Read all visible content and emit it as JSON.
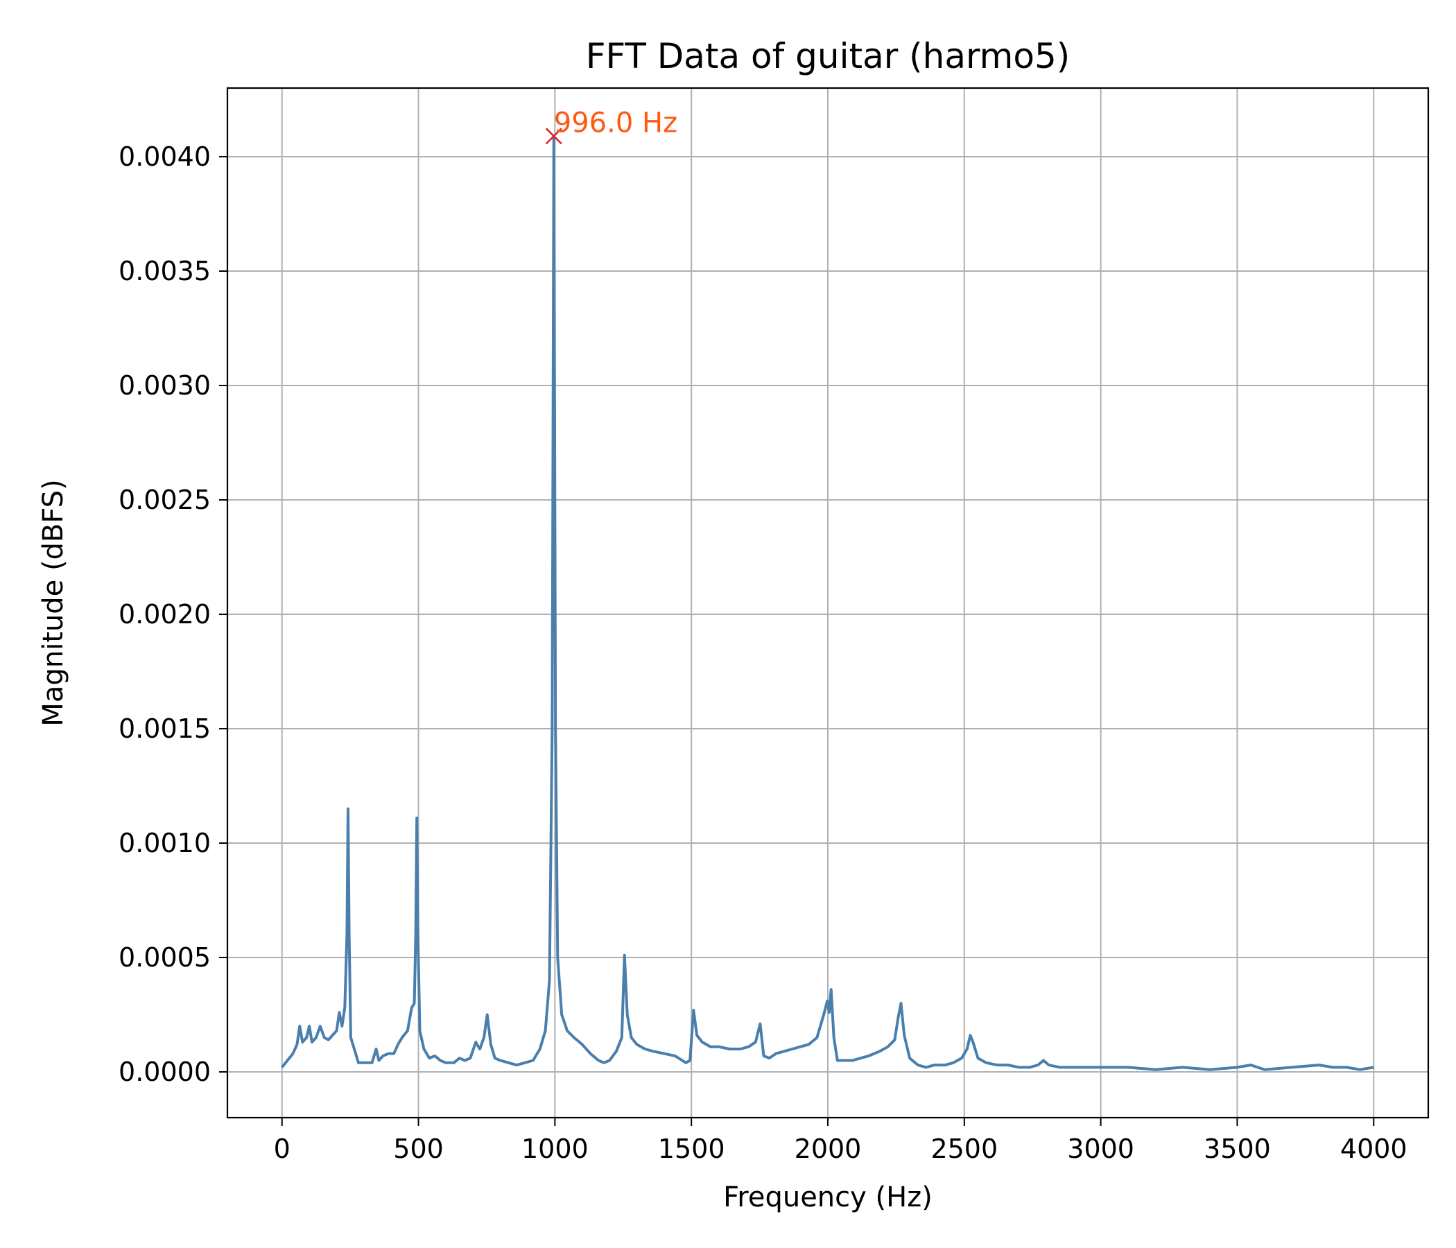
{
  "chart_data": {
    "type": "line",
    "title": "FFT Data of guitar (harmo5)",
    "xlabel": "Frequency (Hz)",
    "ylabel": "Magnitude (dBFS)",
    "xlim": [
      -200,
      4200
    ],
    "ylim": [
      -0.0002,
      0.0043
    ],
    "x_ticks": [
      0,
      500,
      1000,
      1500,
      2000,
      2500,
      3000,
      3500,
      4000
    ],
    "x_tick_labels": [
      "0",
      "500",
      "1000",
      "1500",
      "2000",
      "2500",
      "3000",
      "3500",
      "4000"
    ],
    "y_ticks": [
      0,
      0.0005,
      0.001,
      0.0015,
      0.002,
      0.0025,
      0.003,
      0.0035,
      0.004
    ],
    "y_tick_labels": [
      "0.0000",
      "0.0005",
      "0.0010",
      "0.0015",
      "0.0020",
      "0.0025",
      "0.0030",
      "0.0035",
      "0.0040"
    ],
    "grid": true,
    "line_color": "#4a7fad",
    "series": [
      {
        "points": [
          [
            0,
            2e-05
          ],
          [
            20,
            5e-05
          ],
          [
            40,
            8e-05
          ],
          [
            55,
            0.00012
          ],
          [
            65,
            0.0002
          ],
          [
            75,
            0.00013
          ],
          [
            90,
            0.00015
          ],
          [
            100,
            0.0002
          ],
          [
            110,
            0.00013
          ],
          [
            125,
            0.00015
          ],
          [
            140,
            0.0002
          ],
          [
            155,
            0.00015
          ],
          [
            170,
            0.00014
          ],
          [
            185,
            0.00016
          ],
          [
            200,
            0.00018
          ],
          [
            210,
            0.00026
          ],
          [
            220,
            0.0002
          ],
          [
            230,
            0.00028
          ],
          [
            238,
            0.0006
          ],
          [
            242,
            0.00115
          ],
          [
            246,
            0.0006
          ],
          [
            252,
            0.00015
          ],
          [
            265,
            0.0001
          ],
          [
            280,
            4e-05
          ],
          [
            300,
            4e-05
          ],
          [
            330,
            4e-05
          ],
          [
            345,
            0.0001
          ],
          [
            355,
            5e-05
          ],
          [
            370,
            7e-05
          ],
          [
            390,
            8e-05
          ],
          [
            410,
            8e-05
          ],
          [
            425,
            0.00012
          ],
          [
            440,
            0.00015
          ],
          [
            460,
            0.00018
          ],
          [
            475,
            0.00028
          ],
          [
            485,
            0.0003
          ],
          [
            490,
            0.0006
          ],
          [
            494,
            0.00111
          ],
          [
            498,
            0.0006
          ],
          [
            505,
            0.00018
          ],
          [
            520,
            0.0001
          ],
          [
            540,
            6e-05
          ],
          [
            560,
            7e-05
          ],
          [
            580,
            5e-05
          ],
          [
            600,
            4e-05
          ],
          [
            630,
            4e-05
          ],
          [
            650,
            6e-05
          ],
          [
            670,
            5e-05
          ],
          [
            690,
            6e-05
          ],
          [
            710,
            0.00013
          ],
          [
            725,
            0.0001
          ],
          [
            740,
            0.00015
          ],
          [
            752,
            0.00025
          ],
          [
            765,
            0.00012
          ],
          [
            780,
            6e-05
          ],
          [
            800,
            5e-05
          ],
          [
            830,
            4e-05
          ],
          [
            860,
            3e-05
          ],
          [
            890,
            4e-05
          ],
          [
            920,
            5e-05
          ],
          [
            945,
            0.0001
          ],
          [
            965,
            0.00018
          ],
          [
            980,
            0.0004
          ],
          [
            990,
            0.0015
          ],
          [
            996,
            0.00409
          ],
          [
            1002,
            0.0015
          ],
          [
            1010,
            0.0005
          ],
          [
            1025,
            0.00025
          ],
          [
            1045,
            0.00018
          ],
          [
            1070,
            0.00015
          ],
          [
            1100,
            0.00012
          ],
          [
            1130,
            8e-05
          ],
          [
            1160,
            5e-05
          ],
          [
            1180,
            4e-05
          ],
          [
            1200,
            5e-05
          ],
          [
            1225,
            9e-05
          ],
          [
            1245,
            0.00015
          ],
          [
            1255,
            0.00051
          ],
          [
            1265,
            0.00025
          ],
          [
            1280,
            0.00015
          ],
          [
            1300,
            0.00012
          ],
          [
            1330,
            0.0001
          ],
          [
            1360,
            9e-05
          ],
          [
            1400,
            8e-05
          ],
          [
            1440,
            7e-05
          ],
          [
            1480,
            4e-05
          ],
          [
            1495,
            5e-05
          ],
          [
            1508,
            0.00027
          ],
          [
            1520,
            0.00016
          ],
          [
            1540,
            0.00013
          ],
          [
            1570,
            0.00011
          ],
          [
            1600,
            0.00011
          ],
          [
            1640,
            0.0001
          ],
          [
            1680,
            0.0001
          ],
          [
            1710,
            0.00011
          ],
          [
            1735,
            0.00013
          ],
          [
            1752,
            0.00021
          ],
          [
            1765,
            7e-05
          ],
          [
            1785,
            6e-05
          ],
          [
            1810,
            8e-05
          ],
          [
            1840,
            9e-05
          ],
          [
            1870,
            0.0001
          ],
          [
            1900,
            0.00011
          ],
          [
            1930,
            0.00012
          ],
          [
            1960,
            0.00015
          ],
          [
            1985,
            0.00025
          ],
          [
            1998,
            0.00031
          ],
          [
            2005,
            0.00026
          ],
          [
            2012,
            0.00036
          ],
          [
            2022,
            0.00015
          ],
          [
            2035,
            5e-05
          ],
          [
            2060,
            5e-05
          ],
          [
            2090,
            5e-05
          ],
          [
            2120,
            6e-05
          ],
          [
            2150,
            7e-05
          ],
          [
            2190,
            9e-05
          ],
          [
            2220,
            0.00011
          ],
          [
            2245,
            0.00014
          ],
          [
            2258,
            0.00024
          ],
          [
            2268,
            0.0003
          ],
          [
            2280,
            0.00016
          ],
          [
            2300,
            6e-05
          ],
          [
            2330,
            3e-05
          ],
          [
            2360,
            2e-05
          ],
          [
            2390,
            3e-05
          ],
          [
            2430,
            3e-05
          ],
          [
            2460,
            4e-05
          ],
          [
            2490,
            6e-05
          ],
          [
            2510,
            0.0001
          ],
          [
            2522,
            0.00016
          ],
          [
            2532,
            0.00013
          ],
          [
            2550,
            6e-05
          ],
          [
            2580,
            4e-05
          ],
          [
            2620,
            3e-05
          ],
          [
            2660,
            3e-05
          ],
          [
            2700,
            2e-05
          ],
          [
            2740,
            2e-05
          ],
          [
            2770,
            3e-05
          ],
          [
            2790,
            5e-05
          ],
          [
            2810,
            3e-05
          ],
          [
            2850,
            2e-05
          ],
          [
            2900,
            2e-05
          ],
          [
            2950,
            2e-05
          ],
          [
            3000,
            2e-05
          ],
          [
            3100,
            2e-05
          ],
          [
            3200,
            1e-05
          ],
          [
            3300,
            2e-05
          ],
          [
            3400,
            1e-05
          ],
          [
            3500,
            2e-05
          ],
          [
            3550,
            3e-05
          ],
          [
            3600,
            1e-05
          ],
          [
            3700,
            2e-05
          ],
          [
            3800,
            3e-05
          ],
          [
            3850,
            2e-05
          ],
          [
            3900,
            2e-05
          ],
          [
            3950,
            1e-05
          ],
          [
            4000,
            2e-05
          ]
        ]
      }
    ],
    "annotations": [
      {
        "text": "996.0 Hz",
        "x": 996,
        "y": 0.00409,
        "marker": "x",
        "marker_color": "#d62728",
        "text_color": "#ff5a14"
      }
    ]
  }
}
